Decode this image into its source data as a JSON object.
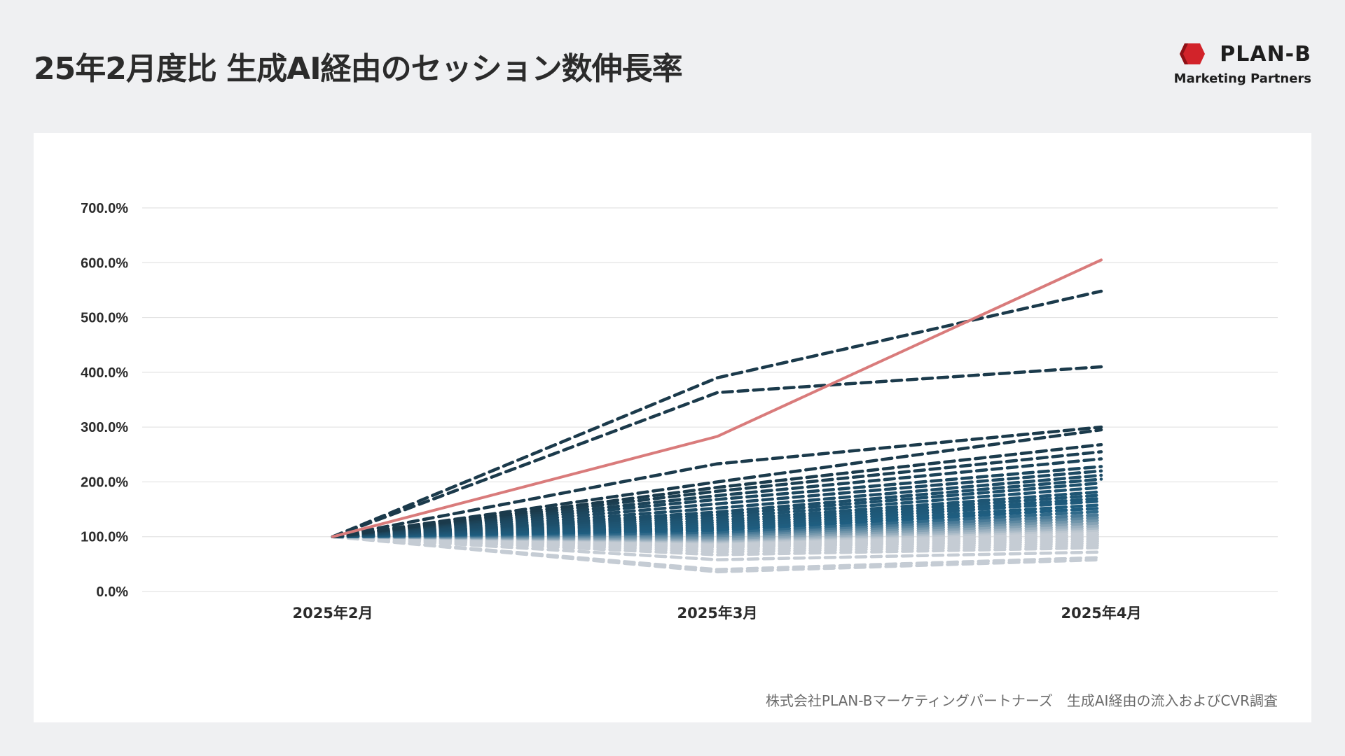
{
  "header": {
    "title": "25年2月度比 生成AI経由のセッション数伸長率"
  },
  "logo": {
    "name": "PLAN-B",
    "tagline": "Marketing Partners",
    "mark_color": "#d2232a"
  },
  "footer": {
    "source": "株式会社PLAN-Bマーケティングパートナーズ　生成AI経由の流入およびCVR調査"
  },
  "chart_data": {
    "type": "line",
    "title": "25年2月度比 生成AI経由のセッション数伸長率",
    "xlabel": "",
    "ylabel": "",
    "categories": [
      "2025年2月",
      "2025年3月",
      "2025年4月"
    ],
    "y_ticks": [
      "0.0%",
      "100.0%",
      "200.0%",
      "300.0%",
      "400.0%",
      "500.0%",
      "600.0%",
      "700.0%"
    ],
    "ylim": [
      0,
      700
    ],
    "grid": true,
    "colors": {
      "highlight": "#d97b7b",
      "dark": "#1b3a4b",
      "mid": "#1f5f82",
      "light": "#c5ccd4",
      "gridline": "#dedede"
    },
    "highlight_series": {
      "name": "highlight",
      "values": [
        100,
        283,
        605
      ]
    },
    "series": [
      {
        "name": "s1",
        "values": [
          100,
          390,
          548
        ]
      },
      {
        "name": "s2",
        "values": [
          100,
          363,
          410
        ]
      },
      {
        "name": "s3",
        "values": [
          100,
          233,
          300
        ]
      },
      {
        "name": "s4",
        "values": [
          100,
          200,
          295
        ]
      },
      {
        "name": "s5",
        "values": [
          100,
          190,
          268
        ]
      },
      {
        "name": "s6",
        "values": [
          100,
          183,
          255
        ]
      },
      {
        "name": "s7",
        "values": [
          100,
          175,
          242
        ]
      },
      {
        "name": "s8",
        "values": [
          100,
          168,
          228
        ]
      },
      {
        "name": "s9",
        "values": [
          100,
          160,
          220
        ]
      },
      {
        "name": "s10",
        "values": [
          100,
          152,
          212
        ]
      },
      {
        "name": "s11",
        "values": [
          100,
          145,
          205
        ]
      },
      {
        "name": "s12",
        "values": [
          100,
          140,
          198
        ]
      },
      {
        "name": "s13",
        "values": [
          100,
          135,
          190
        ]
      },
      {
        "name": "s14",
        "values": [
          100,
          130,
          182
        ]
      },
      {
        "name": "s15",
        "values": [
          100,
          126,
          176
        ]
      },
      {
        "name": "s16",
        "values": [
          100,
          122,
          170
        ]
      },
      {
        "name": "s17",
        "values": [
          100,
          118,
          165
        ]
      },
      {
        "name": "s18",
        "values": [
          100,
          115,
          158
        ]
      },
      {
        "name": "s19",
        "values": [
          100,
          112,
          152
        ]
      },
      {
        "name": "s20",
        "values": [
          100,
          108,
          146
        ]
      },
      {
        "name": "s21",
        "values": [
          100,
          105,
          140
        ]
      },
      {
        "name": "s22",
        "values": [
          100,
          102,
          135
        ]
      },
      {
        "name": "s23",
        "values": [
          100,
          99,
          130
        ]
      },
      {
        "name": "s24",
        "values": [
          100,
          96,
          125
        ]
      },
      {
        "name": "s25",
        "values": [
          100,
          94,
          120
        ]
      },
      {
        "name": "s26",
        "values": [
          100,
          92,
          116
        ]
      },
      {
        "name": "s27",
        "values": [
          100,
          90,
          112
        ]
      },
      {
        "name": "s28",
        "values": [
          100,
          88,
          108
        ]
      },
      {
        "name": "s29",
        "values": [
          100,
          86,
          104
        ]
      },
      {
        "name": "s30",
        "values": [
          100,
          84,
          100
        ]
      },
      {
        "name": "s31",
        "values": [
          100,
          82,
          96
        ]
      },
      {
        "name": "s32",
        "values": [
          100,
          80,
          92
        ]
      },
      {
        "name": "s33",
        "values": [
          100,
          76,
          88
        ]
      },
      {
        "name": "s34",
        "values": [
          100,
          72,
          84
        ]
      },
      {
        "name": "s35",
        "values": [
          100,
          67,
          80
        ]
      },
      {
        "name": "s36",
        "values": [
          100,
          58,
          72
        ]
      },
      {
        "name": "s37",
        "values": [
          100,
          40,
          62
        ]
      },
      {
        "name": "s38",
        "values": [
          100,
          36,
          58
        ]
      }
    ]
  }
}
